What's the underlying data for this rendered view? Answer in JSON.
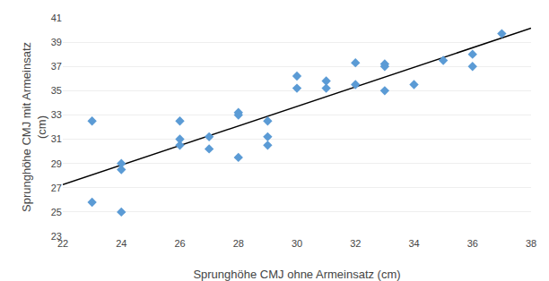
{
  "chart_data": {
    "type": "scatter",
    "xlabel": "Sprunghöhe CMJ ohne Armeinsatz (cm)",
    "ylabel": "Sprunghöhe CMJ mit Armeinsatz\n(cm)",
    "series": [
      {
        "type": "line",
        "color": "#000000",
        "line_style": "solid",
        "x": [
          22,
          38
        ],
        "values": [
          27.252,
          40.155
        ]
      },
      {
        "type": "scatter",
        "color": "#5B9BD5",
        "marker": "diamond",
        "x": [
          23,
          23,
          24,
          24,
          24,
          26,
          26,
          26,
          27,
          27,
          28,
          28,
          28,
          29,
          29,
          29,
          30,
          30,
          31,
          31,
          32,
          32,
          33,
          33,
          33,
          34,
          35,
          36,
          36,
          37
        ],
        "values": [
          25.8,
          32.5,
          25.0,
          29.0,
          28.5,
          31.0,
          30.5,
          32.5,
          30.2,
          31.2,
          29.5,
          33.0,
          33.2,
          31.2,
          32.5,
          30.5,
          35.2,
          36.2,
          35.2,
          35.8,
          37.3,
          35.5,
          37.2,
          37.0,
          35.0,
          35.5,
          37.5,
          38.0,
          37.0,
          39.7
        ]
      }
    ],
    "xlim": [
      22,
      38
    ],
    "ylim": [
      23,
      41
    ],
    "xticks": [
      22,
      24,
      26,
      28,
      30,
      32,
      34,
      36,
      38
    ],
    "yticks": [
      23,
      25,
      27,
      29,
      31,
      33,
      35,
      37,
      39,
      41
    ],
    "grid": "y"
  }
}
